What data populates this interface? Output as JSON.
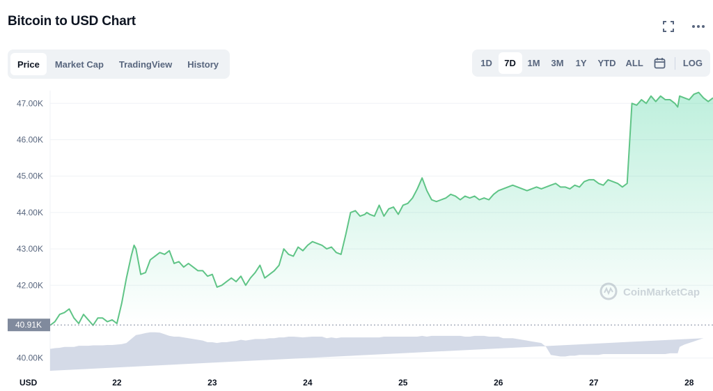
{
  "header": {
    "title": "Bitcoin to USD Chart"
  },
  "tabs": [
    {
      "label": "Price",
      "active": true
    },
    {
      "label": "Market Cap",
      "active": false
    },
    {
      "label": "TradingView",
      "active": false
    },
    {
      "label": "History",
      "active": false
    }
  ],
  "ranges": [
    {
      "label": "1D",
      "active": false
    },
    {
      "label": "7D",
      "active": true
    },
    {
      "label": "1M",
      "active": false
    },
    {
      "label": "3M",
      "active": false
    },
    {
      "label": "1Y",
      "active": false
    },
    {
      "label": "YTD",
      "active": false
    },
    {
      "label": "ALL",
      "active": false
    }
  ],
  "log_label": "LOG",
  "icons": {
    "expand": "expand-icon",
    "more": "more-icon",
    "calendar": "calendar-icon",
    "watermark": "coinmarketcap-logo"
  },
  "watermark_text": "CoinMarketCap",
  "colors": {
    "line": "#5fc486",
    "area": "#16c784",
    "volume": "#cfd6e4",
    "current_tag": "#808a9d"
  },
  "chart_data": {
    "type": "line",
    "title": "Bitcoin to USD Chart",
    "ylabel": "USD",
    "xlabel": "",
    "yticks": [
      "47.00K",
      "46.00K",
      "45.00K",
      "44.00K",
      "43.00K",
      "42.00K",
      "40.00K"
    ],
    "xticks": [
      "22",
      "23",
      "24",
      "25",
      "26",
      "27",
      "28"
    ],
    "ylim": [
      39650,
      47350
    ],
    "xlim": [
      21.3,
      28.25
    ],
    "current_price_label": "40.91K",
    "current_price_value": 40910,
    "grid": true,
    "series": [
      {
        "values_x": [
          21.3,
          21.35,
          21.4,
          21.45,
          21.5,
          21.55,
          21.6,
          21.65,
          21.7,
          21.75,
          21.8,
          21.85,
          21.9,
          21.95,
          22.0,
          22.05,
          22.1,
          22.15,
          22.18,
          22.2,
          22.25,
          22.3,
          22.35,
          22.4,
          22.45,
          22.5,
          22.55,
          22.6,
          22.65,
          22.7,
          22.75,
          22.8,
          22.85,
          22.9,
          22.95,
          23.0,
          23.05,
          23.1,
          23.15,
          23.2,
          23.25,
          23.3,
          23.35,
          23.4,
          23.45,
          23.5,
          23.55,
          23.6,
          23.65,
          23.7,
          23.75,
          23.8,
          23.85,
          23.9,
          23.95,
          24.0,
          24.05,
          24.1,
          24.15,
          24.2,
          24.25,
          24.3,
          24.35,
          24.4,
          24.45,
          24.5,
          24.55,
          24.6,
          24.62,
          24.65,
          24.7,
          24.75,
          24.8,
          24.85,
          24.9,
          24.95,
          25.0,
          25.05,
          25.1,
          25.15,
          25.2,
          25.25,
          25.3,
          25.35,
          25.4,
          25.45,
          25.5,
          25.55,
          25.6,
          25.65,
          25.7,
          25.75,
          25.8,
          25.85,
          25.9,
          25.95,
          26.0,
          26.05,
          26.1,
          26.15,
          26.2,
          26.25,
          26.3,
          26.35,
          26.4,
          26.45,
          26.5,
          26.55,
          26.6,
          26.65,
          26.7,
          26.75,
          26.8,
          26.85,
          26.9,
          26.95,
          27.0,
          27.05,
          27.1,
          27.15,
          27.2,
          27.25,
          27.3,
          27.35,
          27.4,
          27.45,
          27.5,
          27.55,
          27.6,
          27.65,
          27.7,
          27.75,
          27.8,
          27.85,
          27.88,
          27.9,
          27.95,
          28.0,
          28.05,
          28.1,
          28.15,
          28.2,
          28.25
        ],
        "values_y": [
          40900,
          41000,
          41200,
          41250,
          41350,
          41100,
          40950,
          41200,
          41050,
          40900,
          41100,
          41100,
          41000,
          41050,
          40950,
          41500,
          42200,
          42800,
          43100,
          43000,
          42300,
          42350,
          42700,
          42800,
          42900,
          42850,
          42950,
          42600,
          42650,
          42500,
          42600,
          42500,
          42400,
          42400,
          42250,
          42300,
          41950,
          42000,
          42100,
          42200,
          42100,
          42250,
          42000,
          42200,
          42350,
          42550,
          42200,
          42300,
          42400,
          42550,
          43000,
          42850,
          42800,
          43050,
          42950,
          43100,
          43200,
          43150,
          43100,
          43000,
          43050,
          42900,
          42850,
          43400,
          44000,
          44050,
          43900,
          43950,
          44000,
          43950,
          43900,
          44200,
          43900,
          44100,
          44150,
          43950,
          44200,
          44250,
          44400,
          44650,
          44950,
          44600,
          44350,
          44300,
          44350,
          44400,
          44500,
          44450,
          44350,
          44450,
          44400,
          44450,
          44350,
          44400,
          44350,
          44500,
          44600,
          44650,
          44700,
          44750,
          44700,
          44650,
          44600,
          44650,
          44700,
          44650,
          44700,
          44750,
          44800,
          44700,
          44700,
          44650,
          44750,
          44700,
          44850,
          44900,
          44900,
          44800,
          44750,
          44900,
          44850,
          44800,
          44700,
          44800,
          47000,
          46950,
          47100,
          47000,
          47200,
          47050,
          47200,
          47100,
          47100,
          47000,
          46900,
          47200,
          47150,
          47100,
          47250,
          47300,
          47150,
          47050,
          47150
        ],
        "volume_level": [
          0.55,
          0.57,
          0.58,
          0.6,
          0.6,
          0.6,
          0.63,
          0.63,
          0.63,
          0.64,
          0.64,
          0.64,
          0.65,
          0.65,
          0.66,
          0.67,
          0.7,
          0.8,
          0.86,
          0.9,
          0.92,
          0.95,
          0.97,
          0.97,
          0.96,
          0.92,
          0.88,
          0.86,
          0.86,
          0.84,
          0.82,
          0.8,
          0.78,
          0.76,
          0.72,
          0.72,
          0.7,
          0.72,
          0.72,
          0.74,
          0.75,
          0.78,
          0.76,
          0.78,
          0.8,
          0.8,
          0.8,
          0.82,
          0.82,
          0.84,
          0.84,
          0.86,
          0.86,
          0.85,
          0.84,
          0.85,
          0.86,
          0.86,
          0.86,
          0.82,
          0.84,
          0.82,
          0.84,
          0.84,
          0.84,
          0.84,
          0.84,
          0.84,
          0.84,
          0.84,
          0.84,
          0.84,
          0.86,
          0.86,
          0.86,
          0.86,
          0.86,
          0.86,
          0.86,
          0.86,
          0.88,
          0.86,
          0.88,
          0.88,
          0.88,
          0.88,
          0.88,
          0.88,
          0.88,
          0.86,
          0.86,
          0.88,
          0.88,
          0.88,
          0.86,
          0.86,
          0.86,
          0.82,
          0.82,
          0.82,
          0.8,
          0.78,
          0.76,
          0.74,
          0.72,
          0.7,
          0.6,
          0.4,
          0.38,
          0.36,
          0.36,
          0.38,
          0.38,
          0.4,
          0.4,
          0.4,
          0.4,
          0.4,
          0.42,
          0.42,
          0.42,
          0.42,
          0.42,
          0.42,
          0.42,
          0.42,
          0.42,
          0.42,
          0.42,
          0.42,
          0.42,
          0.42,
          0.44,
          0.44,
          0.44,
          0.6,
          0.66,
          0.7,
          0.74,
          0.78,
          0.82
        ]
      }
    ]
  }
}
